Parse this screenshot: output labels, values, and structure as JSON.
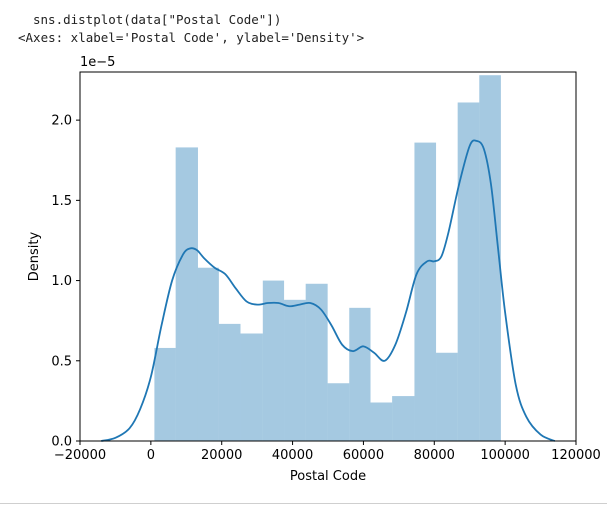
{
  "cell": {
    "code": "sns.distplot(data[\"Postal Code\"])",
    "output": "<Axes: xlabel='Postal Code', ylabel='Density'>"
  },
  "chart_data": {
    "type": "bar",
    "overlay": "line",
    "xlabel": "Postal Code",
    "ylabel": "Density",
    "scale_label": "1e−5",
    "xlim": [
      -20000,
      120000
    ],
    "ylim": [
      0,
      2.3
    ],
    "xticks": [
      -20000,
      0,
      20000,
      40000,
      60000,
      80000,
      100000,
      120000
    ],
    "xtick_labels": [
      "−20000",
      "0",
      "20000",
      "40000",
      "60000",
      "80000",
      "100000",
      "120000"
    ],
    "yticks": [
      0,
      0.5,
      1.0,
      1.5,
      2.0
    ],
    "ytick_labels": [
      "0.0",
      "0.5",
      "1.0",
      "1.5",
      "2.0"
    ],
    "histogram": {
      "color": "#1f77b4",
      "opacity": 0.4,
      "bins": [
        {
          "x0": 1000,
          "x1": 7000,
          "density": 0.58
        },
        {
          "x0": 7000,
          "x1": 13300,
          "density": 1.83
        },
        {
          "x0": 13300,
          "x1": 19200,
          "density": 1.08
        },
        {
          "x0": 19200,
          "x1": 25300,
          "density": 0.73
        },
        {
          "x0": 25300,
          "x1": 31600,
          "density": 0.67
        },
        {
          "x0": 31600,
          "x1": 37600,
          "density": 1.0
        },
        {
          "x0": 37600,
          "x1": 43700,
          "density": 0.88
        },
        {
          "x0": 43700,
          "x1": 49900,
          "density": 0.98
        },
        {
          "x0": 49900,
          "x1": 56000,
          "density": 0.36
        },
        {
          "x0": 56000,
          "x1": 62000,
          "density": 0.83
        },
        {
          "x0": 62000,
          "x1": 68100,
          "density": 0.24
        },
        {
          "x0": 68100,
          "x1": 74400,
          "density": 0.28
        },
        {
          "x0": 74400,
          "x1": 80500,
          "density": 1.86
        },
        {
          "x0": 80500,
          "x1": 86600,
          "density": 0.55
        },
        {
          "x0": 86600,
          "x1": 92700,
          "density": 2.11
        },
        {
          "x0": 92700,
          "x1": 98800,
          "density": 2.28
        }
      ]
    },
    "kde": {
      "color": "#1f77b4",
      "x": [
        -14000,
        -10000,
        -6000,
        -3000,
        0,
        3000,
        6000,
        9000,
        11000,
        13000,
        15000,
        18000,
        21000,
        24000,
        27000,
        30000,
        33000,
        36000,
        39000,
        42000,
        45000,
        48000,
        51000,
        54000,
        57000,
        60000,
        63000,
        66000,
        69000,
        72000,
        75000,
        78000,
        80000,
        82000,
        84000,
        87000,
        90000,
        92000,
        94000,
        96000,
        98000,
        100000,
        103000,
        106000,
        110000,
        114000
      ],
      "y": [
        0.0,
        0.02,
        0.08,
        0.2,
        0.4,
        0.72,
        1.0,
        1.16,
        1.2,
        1.19,
        1.14,
        1.08,
        1.04,
        0.95,
        0.87,
        0.85,
        0.86,
        0.86,
        0.84,
        0.85,
        0.86,
        0.82,
        0.72,
        0.6,
        0.56,
        0.59,
        0.55,
        0.5,
        0.6,
        0.8,
        1.04,
        1.12,
        1.12,
        1.15,
        1.3,
        1.6,
        1.84,
        1.87,
        1.82,
        1.6,
        1.2,
        0.8,
        0.35,
        0.15,
        0.04,
        0.0
      ]
    },
    "grid": false,
    "legend": false
  }
}
